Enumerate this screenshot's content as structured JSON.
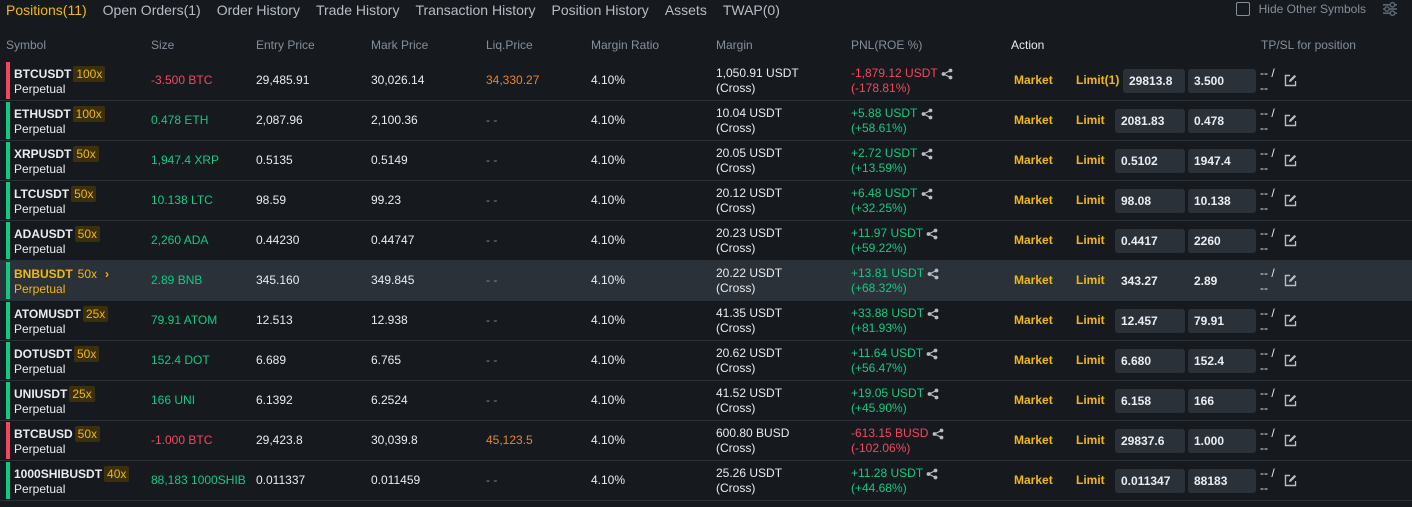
{
  "tabs": [
    {
      "label": "Positions(11)",
      "active": true
    },
    {
      "label": "Open Orders(1)"
    },
    {
      "label": "Order History"
    },
    {
      "label": "Trade History"
    },
    {
      "label": "Transaction History"
    },
    {
      "label": "Position History"
    },
    {
      "label": "Assets"
    },
    {
      "label": "TWAP(0)"
    }
  ],
  "hide_other_symbols": {
    "label": "Hide Other Symbols",
    "checked": false
  },
  "columns": {
    "symbol": "Symbol",
    "size": "Size",
    "entry": "Entry Price",
    "mark": "Mark Price",
    "liq": "Liq.Price",
    "margin_ratio": "Margin Ratio",
    "margin": "Margin",
    "pnl": "PNL(ROE %)",
    "action": "Action",
    "tpsl": "TP/SL for position"
  },
  "colors": {
    "accent": "#f0b90b",
    "positive": "#0ecb81",
    "negative": "#f6465d",
    "liq": "#e9822f"
  },
  "action_labels": {
    "market": "Market",
    "tpsl_top": "-- /",
    "tpsl_bottom": "--"
  },
  "positions": [
    {
      "symbol": "BTCUSDT",
      "type": "Perpetual",
      "leverage": "100x",
      "side": "short",
      "size": "-3.500 BTC",
      "entry": "29,485.91",
      "mark": "30,026.14",
      "liq": "34,330.27",
      "liq_active": true,
      "ratio": "4.10%",
      "margin": "1,050.91 USDT",
      "margin_mode": "(Cross)",
      "pnl": "-1,879.12 USDT",
      "roe": "(-178.81%)",
      "limit_label": "Limit(1)",
      "limit_price": "29813.8",
      "limit_qty": "3.500"
    },
    {
      "symbol": "ETHUSDT",
      "type": "Perpetual",
      "leverage": "100x",
      "side": "long",
      "size": "0.478 ETH",
      "entry": "2,087.96",
      "mark": "2,100.36",
      "liq": "- -",
      "liq_active": false,
      "ratio": "4.10%",
      "margin": "10.04 USDT",
      "margin_mode": "(Cross)",
      "pnl": "+5.88 USDT",
      "roe": "(+58.61%)",
      "limit_label": "Limit",
      "limit_price": "2081.83",
      "limit_qty": "0.478"
    },
    {
      "symbol": "XRPUSDT",
      "type": "Perpetual",
      "leverage": "50x",
      "side": "long",
      "size": "1,947.4 XRP",
      "entry": "0.5135",
      "mark": "0.5149",
      "liq": "- -",
      "liq_active": false,
      "ratio": "4.10%",
      "margin": "20.05 USDT",
      "margin_mode": "(Cross)",
      "pnl": "+2.72 USDT",
      "roe": "(+13.59%)",
      "limit_label": "Limit",
      "limit_price": "0.5102",
      "limit_qty": "1947.4"
    },
    {
      "symbol": "LTCUSDT",
      "type": "Perpetual",
      "leverage": "50x",
      "side": "long",
      "size": "10.138 LTC",
      "entry": "98.59",
      "mark": "99.23",
      "liq": "- -",
      "liq_active": false,
      "ratio": "4.10%",
      "margin": "20.12 USDT",
      "margin_mode": "(Cross)",
      "pnl": "+6.48 USDT",
      "roe": "(+32.25%)",
      "limit_label": "Limit",
      "limit_price": "98.08",
      "limit_qty": "10.138"
    },
    {
      "symbol": "ADAUSDT",
      "type": "Perpetual",
      "leverage": "50x",
      "side": "long",
      "size": "2,260 ADA",
      "entry": "0.44230",
      "mark": "0.44747",
      "liq": "- -",
      "liq_active": false,
      "ratio": "4.10%",
      "margin": "20.23 USDT",
      "margin_mode": "(Cross)",
      "pnl": "+11.97 USDT",
      "roe": "(+59.22%)",
      "limit_label": "Limit",
      "limit_price": "0.4417",
      "limit_qty": "2260"
    },
    {
      "symbol": "BNBUSDT",
      "type": "Perpetual",
      "leverage": "50x",
      "side": "long",
      "highlight": true,
      "size": "2.89 BNB",
      "entry": "345.160",
      "mark": "349.845",
      "liq": "- -",
      "liq_active": false,
      "ratio": "4.10%",
      "margin": "20.22 USDT",
      "margin_mode": "(Cross)",
      "pnl": "+13.81 USDT",
      "roe": "(+68.32%)",
      "limit_label": "Limit",
      "limit_price": "343.27",
      "limit_qty": "2.89"
    },
    {
      "symbol": "ATOMUSDT",
      "type": "Perpetual",
      "leverage": "25x",
      "side": "long",
      "size": "79.91 ATOM",
      "entry": "12.513",
      "mark": "12.938",
      "liq": "- -",
      "liq_active": false,
      "ratio": "4.10%",
      "margin": "41.35 USDT",
      "margin_mode": "(Cross)",
      "pnl": "+33.88 USDT",
      "roe": "(+81.93%)",
      "limit_label": "Limit",
      "limit_price": "12.457",
      "limit_qty": "79.91"
    },
    {
      "symbol": "DOTUSDT",
      "type": "Perpetual",
      "leverage": "50x",
      "side": "long",
      "size": "152.4 DOT",
      "entry": "6.689",
      "mark": "6.765",
      "liq": "- -",
      "liq_active": false,
      "ratio": "4.10%",
      "margin": "20.62 USDT",
      "margin_mode": "(Cross)",
      "pnl": "+11.64 USDT",
      "roe": "(+56.47%)",
      "limit_label": "Limit",
      "limit_price": "6.680",
      "limit_qty": "152.4"
    },
    {
      "symbol": "UNIUSDT",
      "type": "Perpetual",
      "leverage": "25x",
      "side": "long",
      "size": "166 UNI",
      "entry": "6.1392",
      "mark": "6.2524",
      "liq": "- -",
      "liq_active": false,
      "ratio": "4.10%",
      "margin": "41.52 USDT",
      "margin_mode": "(Cross)",
      "pnl": "+19.05 USDT",
      "roe": "(+45.90%)",
      "limit_label": "Limit",
      "limit_price": "6.158",
      "limit_qty": "166"
    },
    {
      "symbol": "BTCBUSD",
      "type": "Perpetual",
      "leverage": "50x",
      "side": "short",
      "size": "-1.000 BTC",
      "entry": "29,423.8",
      "mark": "30,039.8",
      "liq": "45,123.5",
      "liq_active": true,
      "ratio": "4.10%",
      "margin": "600.80 BUSD",
      "margin_mode": "(Cross)",
      "pnl": "-613.15 BUSD",
      "roe": "(-102.06%)",
      "limit_label": "Limit",
      "limit_price": "29837.6",
      "limit_qty": "1.000"
    },
    {
      "symbol": "1000SHIBUSDT",
      "type": "Perpetual",
      "leverage": "40x",
      "side": "long",
      "size": "88,183 1000SHIB",
      "entry": "0.011337",
      "mark": "0.011459",
      "liq": "- -",
      "liq_active": false,
      "ratio": "4.10%",
      "margin": "25.26 USDT",
      "margin_mode": "(Cross)",
      "pnl": "+11.28 USDT",
      "roe": "(+44.68%)",
      "limit_label": "Limit",
      "limit_price": "0.011347",
      "limit_qty": "88183"
    }
  ]
}
